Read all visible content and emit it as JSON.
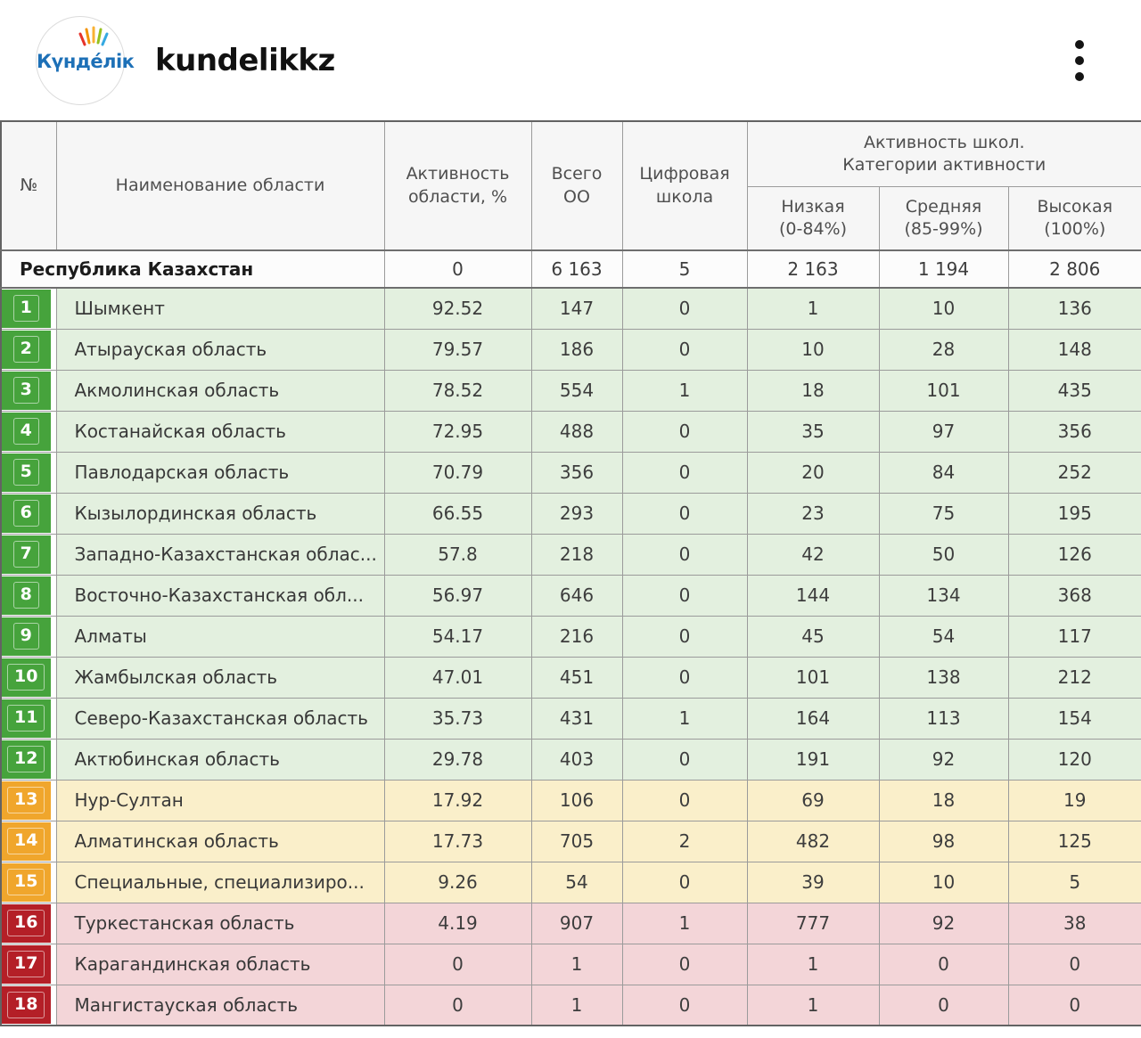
{
  "post_header": {
    "username": "kundelikkz",
    "avatar_logo_text": "Күнде́лік",
    "menu_icon": "vertical-ellipsis-icon"
  },
  "colors": {
    "green_badge": "#46a33c",
    "green_row": "#e3f0df",
    "yellow_badge": "#f0a62c",
    "yellow_row": "#faefca",
    "red_badge": "#b41f27",
    "red_row": "#f3d5d8",
    "header_bg": "#f6f6f6",
    "summary_bg": "#fcfcfc",
    "border": "#9b9b9b",
    "logo_blue": "#1d70b7"
  },
  "table": {
    "header": {
      "num": "№",
      "region": "Наименование области",
      "activity_l1": "Активность",
      "activity_l2": "области, %",
      "total_l1": "Всего",
      "total_l2": "ОО",
      "digital_l1": "Цифровая",
      "digital_l2": "школа",
      "group_l1": "Активность школ.",
      "group_l2": "Категории активности",
      "low_l1": "Низкая",
      "low_l2": "(0-84%)",
      "mid_l1": "Средняя",
      "mid_l2": "(85-99%)",
      "high_l1": "Высокая",
      "high_l2": "(100%)"
    },
    "summary_row": {
      "name": "Республика Казахстан",
      "values": [
        "0",
        "6 163",
        "5",
        "2 163",
        "1 194",
        "2 806"
      ]
    },
    "rows": [
      {
        "num": "1",
        "tier": "green",
        "name": "Шымкент",
        "values": [
          "92.52",
          "147",
          "0",
          "1",
          "10",
          "136"
        ]
      },
      {
        "num": "2",
        "tier": "green",
        "name": "Атырауская область",
        "values": [
          "79.57",
          "186",
          "0",
          "10",
          "28",
          "148"
        ]
      },
      {
        "num": "3",
        "tier": "green",
        "name": "Акмолинская область",
        "values": [
          "78.52",
          "554",
          "1",
          "18",
          "101",
          "435"
        ]
      },
      {
        "num": "4",
        "tier": "green",
        "name": "Костанайская область",
        "values": [
          "72.95",
          "488",
          "0",
          "35",
          "97",
          "356"
        ]
      },
      {
        "num": "5",
        "tier": "green",
        "name": "Павлодарская область",
        "values": [
          "70.79",
          "356",
          "0",
          "20",
          "84",
          "252"
        ]
      },
      {
        "num": "6",
        "tier": "green",
        "name": "Кызылординская область",
        "values": [
          "66.55",
          "293",
          "0",
          "23",
          "75",
          "195"
        ]
      },
      {
        "num": "7",
        "tier": "green",
        "name": "Западно-Казахстанская облас...",
        "values": [
          "57.8",
          "218",
          "0",
          "42",
          "50",
          "126"
        ]
      },
      {
        "num": "8",
        "tier": "green",
        "name": "Восточно-Казахстанская обл...",
        "values": [
          "56.97",
          "646",
          "0",
          "144",
          "134",
          "368"
        ]
      },
      {
        "num": "9",
        "tier": "green",
        "name": "Алматы",
        "values": [
          "54.17",
          "216",
          "0",
          "45",
          "54",
          "117"
        ]
      },
      {
        "num": "10",
        "tier": "green",
        "name": "Жамбылская область",
        "values": [
          "47.01",
          "451",
          "0",
          "101",
          "138",
          "212"
        ]
      },
      {
        "num": "11",
        "tier": "green",
        "name": "Северо-Казахстанская область",
        "values": [
          "35.73",
          "431",
          "1",
          "164",
          "113",
          "154"
        ]
      },
      {
        "num": "12",
        "tier": "green",
        "name": "Актюбинская область",
        "values": [
          "29.78",
          "403",
          "0",
          "191",
          "92",
          "120"
        ]
      },
      {
        "num": "13",
        "tier": "yellow",
        "name": "Нур-Султан",
        "values": [
          "17.92",
          "106",
          "0",
          "69",
          "18",
          "19"
        ]
      },
      {
        "num": "14",
        "tier": "yellow",
        "name": "Алматинская область",
        "values": [
          "17.73",
          "705",
          "2",
          "482",
          "98",
          "125"
        ]
      },
      {
        "num": "15",
        "tier": "yellow",
        "name": "Специальные, специализиро...",
        "values": [
          "9.26",
          "54",
          "0",
          "39",
          "10",
          "5"
        ]
      },
      {
        "num": "16",
        "tier": "red",
        "name": "Туркестанская область",
        "values": [
          "4.19",
          "907",
          "1",
          "777",
          "92",
          "38"
        ]
      },
      {
        "num": "17",
        "tier": "red",
        "name": "Карагандинская область",
        "values": [
          "0",
          "1",
          "0",
          "1",
          "0",
          "0"
        ]
      },
      {
        "num": "18",
        "tier": "red",
        "name": "Мангистауская область",
        "values": [
          "0",
          "1",
          "0",
          "1",
          "0",
          "0"
        ]
      }
    ]
  }
}
